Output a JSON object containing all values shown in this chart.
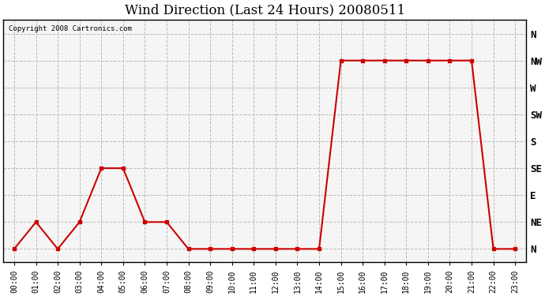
{
  "title": "Wind Direction (Last 24 Hours) 20080511",
  "copyright": "Copyright 2008 Cartronics.com",
  "hours": [
    0,
    1,
    2,
    3,
    4,
    5,
    6,
    7,
    8,
    9,
    10,
    11,
    12,
    13,
    14,
    15,
    16,
    17,
    18,
    19,
    20,
    21,
    22,
    23
  ],
  "wind_directions": [
    0,
    1,
    0,
    1,
    3,
    3,
    1,
    1,
    0,
    0,
    0,
    0,
    0,
    0,
    0,
    7,
    7,
    7,
    7,
    7,
    7,
    7,
    0,
    0
  ],
  "ytick_labels": [
    "N",
    "NE",
    "E",
    "SE",
    "S",
    "SW",
    "W",
    "NW",
    "N"
  ],
  "ytick_values": [
    0,
    1,
    2,
    3,
    4,
    5,
    6,
    7,
    8
  ],
  "line_color": "#cc0000",
  "marker": "s",
  "marker_size": 3,
  "bg_color": "#f5f5f5",
  "grid_color": "#bbbbbb",
  "title_fontsize": 12,
  "fig_width": 6.9,
  "fig_height": 3.75
}
